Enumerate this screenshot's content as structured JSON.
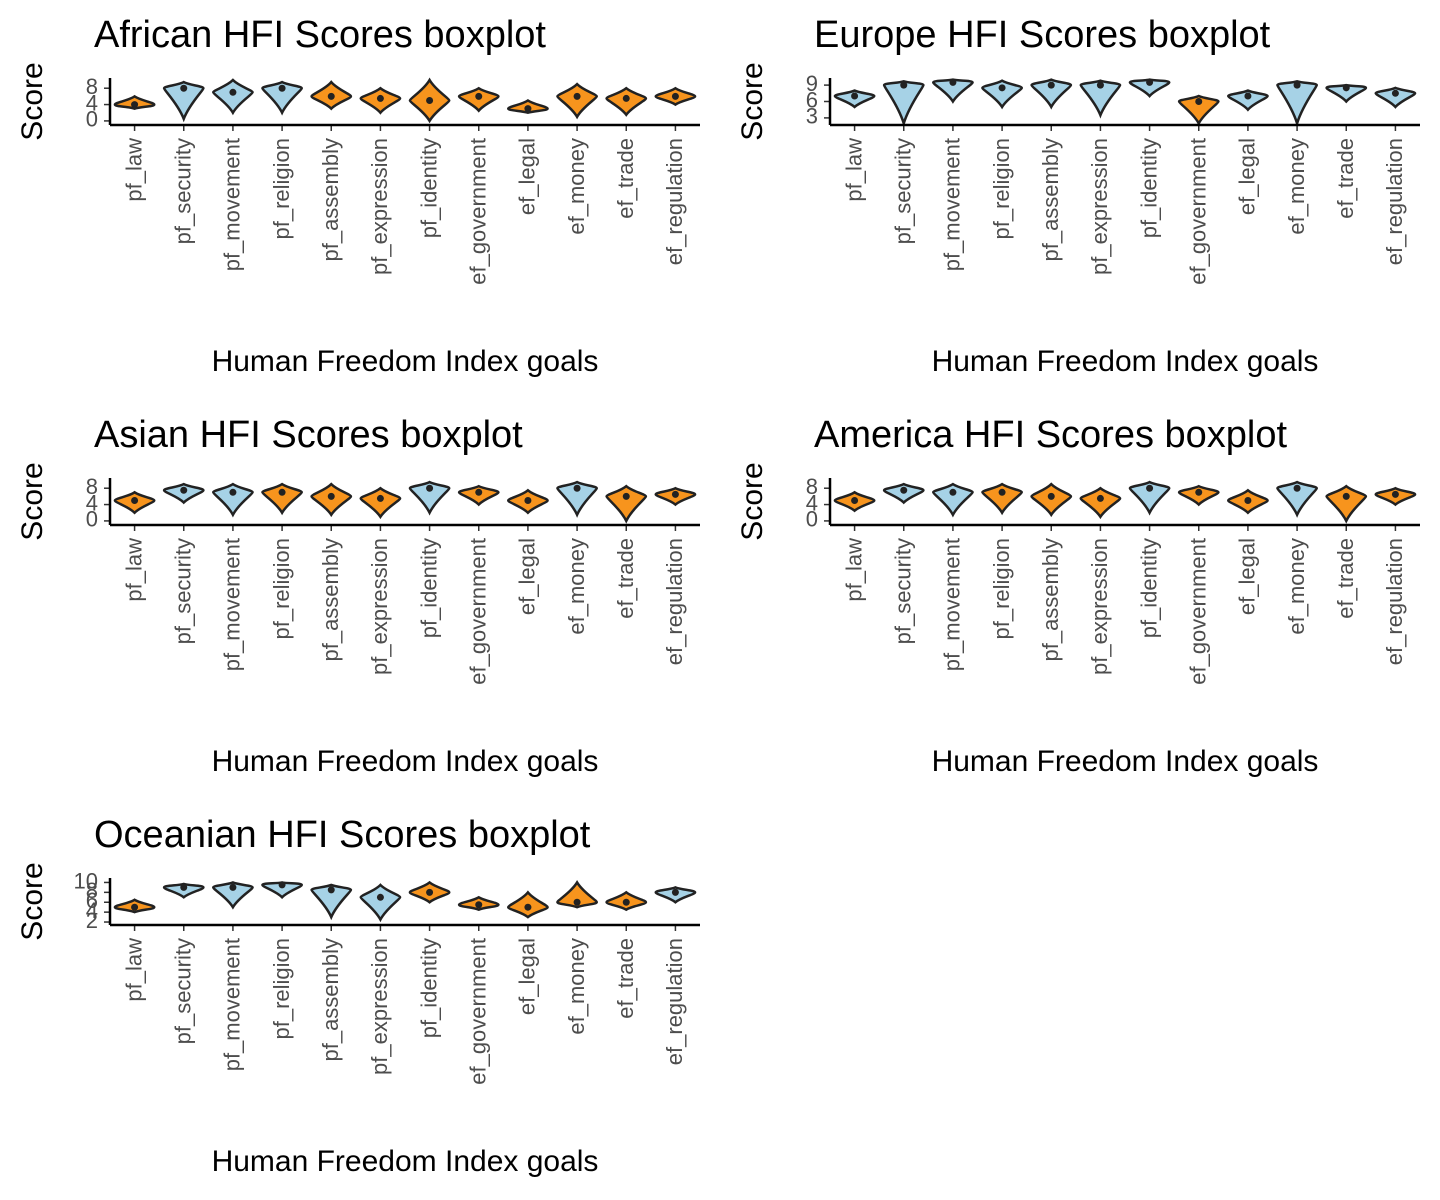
{
  "chart_data": [
    {
      "type": "violin",
      "title": "African HFI Scores boxplot",
      "x_label": "Human Freedom Index goals",
      "y_label": "Score",
      "categories": [
        "pf_law",
        "pf_security",
        "pf_movement",
        "pf_religion",
        "pf_assembly",
        "pf_expression",
        "pf_identity",
        "ef_government",
        "ef_legal",
        "ef_money",
        "ef_trade",
        "ef_regulation"
      ],
      "colors": [
        "#f7941d",
        "#a6d2e6",
        "#a6d2e6",
        "#a6d2e6",
        "#f7941d",
        "#f7941d",
        "#f7941d",
        "#f7941d",
        "#f7941d",
        "#f7941d",
        "#f7941d",
        "#f7941d"
      ],
      "min": [
        3,
        0.5,
        2,
        2,
        3,
        2,
        0,
        2.5,
        2,
        1,
        1.5,
        4
      ],
      "median": [
        4,
        8,
        7,
        8,
        6,
        5.5,
        5,
        6,
        3,
        6,
        5.5,
        6
      ],
      "max": [
        6,
        9.5,
        10,
        9.5,
        9.5,
        8,
        10,
        8,
        5,
        9,
        8,
        8
      ],
      "ylim": [
        -1,
        10.5
      ],
      "yticks": [
        0,
        4,
        8
      ]
    },
    {
      "type": "violin",
      "title": "Europe HFI Scores boxplot",
      "x_label": "Human Freedom Index goals",
      "y_label": "Score",
      "categories": [
        "pf_law",
        "pf_security",
        "pf_movement",
        "pf_religion",
        "pf_assembly",
        "pf_expression",
        "pf_identity",
        "ef_government",
        "ef_legal",
        "ef_money",
        "ef_trade",
        "ef_regulation"
      ],
      "colors": [
        "#a6d2e6",
        "#a6d2e6",
        "#a6d2e6",
        "#a6d2e6",
        "#a6d2e6",
        "#a6d2e6",
        "#a6d2e6",
        "#f7941d",
        "#a6d2e6",
        "#a6d2e6",
        "#a6d2e6",
        "#a6d2e6"
      ],
      "min": [
        5,
        2,
        6,
        5,
        5,
        3.5,
        7,
        2,
        4.5,
        2,
        6,
        5
      ],
      "median": [
        7,
        9,
        9.5,
        8.5,
        9,
        9,
        9.5,
        6,
        7,
        9,
        8.5,
        7.5
      ],
      "max": [
        8,
        9.7,
        10,
        9.8,
        10,
        9.8,
        10,
        7,
        8,
        9.7,
        9,
        8.5
      ],
      "ylim": [
        1.7,
        10.3
      ],
      "yticks": [
        3,
        6,
        9
      ]
    },
    {
      "type": "violin",
      "title": "Asian HFI Scores boxplot",
      "x_label": "Human Freedom Index goals",
      "y_label": "Score",
      "categories": [
        "pf_law",
        "pf_security",
        "pf_movement",
        "pf_religion",
        "pf_assembly",
        "pf_expression",
        "pf_identity",
        "ef_government",
        "ef_legal",
        "ef_money",
        "ef_trade",
        "ef_regulation"
      ],
      "colors": [
        "#f7941d",
        "#a6d2e6",
        "#a6d2e6",
        "#f7941d",
        "#f7941d",
        "#f7941d",
        "#a6d2e6",
        "#f7941d",
        "#f7941d",
        "#a6d2e6",
        "#f7941d",
        "#f7941d"
      ],
      "min": [
        2,
        4.5,
        1.5,
        2,
        1.5,
        1,
        2,
        4,
        2,
        1.5,
        0,
        4
      ],
      "median": [
        5,
        7.5,
        7,
        7,
        6,
        5.5,
        8,
        7,
        5,
        8,
        6,
        6.5
      ],
      "max": [
        7,
        9,
        9,
        9,
        9,
        8,
        9.5,
        8.5,
        7.5,
        9.5,
        8.5,
        8
      ],
      "ylim": [
        -1,
        10.5
      ],
      "yticks": [
        0,
        4,
        8
      ]
    },
    {
      "type": "violin",
      "title": "America HFI Scores boxplot",
      "x_label": "Human Freedom Index goals",
      "y_label": "Score",
      "categories": [
        "pf_law",
        "pf_security",
        "pf_movement",
        "pf_religion",
        "pf_assembly",
        "pf_expression",
        "pf_identity",
        "ef_government",
        "ef_legal",
        "ef_money",
        "ef_trade",
        "ef_regulation"
      ],
      "colors": [
        "#f7941d",
        "#a6d2e6",
        "#a6d2e6",
        "#f7941d",
        "#f7941d",
        "#f7941d",
        "#a6d2e6",
        "#f7941d",
        "#f7941d",
        "#a6d2e6",
        "#f7941d",
        "#f7941d"
      ],
      "min": [
        2.5,
        4.5,
        1.5,
        2,
        1.5,
        1,
        2,
        4,
        2,
        1.5,
        0,
        4
      ],
      "median": [
        5,
        7.5,
        7,
        7,
        6,
        5.5,
        8,
        7,
        5,
        8,
        6,
        6.5
      ],
      "max": [
        7,
        9,
        9,
        9,
        9,
        8,
        9.5,
        8.5,
        7.5,
        9.5,
        8.5,
        8
      ],
      "ylim": [
        -1,
        10.5
      ],
      "yticks": [
        0,
        4,
        8
      ]
    },
    {
      "type": "violin",
      "title": "Oceanian HFI Scores boxplot",
      "x_label": "Human Freedom Index goals",
      "y_label": "Score",
      "categories": [
        "pf_law",
        "pf_security",
        "pf_movement",
        "pf_religion",
        "pf_assembly",
        "pf_expression",
        "pf_identity",
        "ef_government",
        "ef_legal",
        "ef_money",
        "ef_trade",
        "ef_regulation"
      ],
      "colors": [
        "#f7941d",
        "#a6d2e6",
        "#a6d2e6",
        "#a6d2e6",
        "#a6d2e6",
        "#a6d2e6",
        "#f7941d",
        "#f7941d",
        "#f7941d",
        "#f7941d",
        "#f7941d",
        "#a6d2e6"
      ],
      "min": [
        4,
        7,
        5,
        7,
        3,
        2.5,
        6,
        4.5,
        3,
        5,
        4.5,
        6
      ],
      "median": [
        5,
        9,
        9,
        9.5,
        8.5,
        7,
        8,
        5.5,
        5,
        6,
        6,
        8
      ],
      "max": [
        6.5,
        9.7,
        10,
        10,
        9.5,
        9.5,
        10,
        7,
        8,
        10,
        8,
        9
      ],
      "ylim": [
        1.4,
        10.9
      ],
      "yticks": [
        2,
        4,
        6,
        8,
        10
      ]
    }
  ]
}
